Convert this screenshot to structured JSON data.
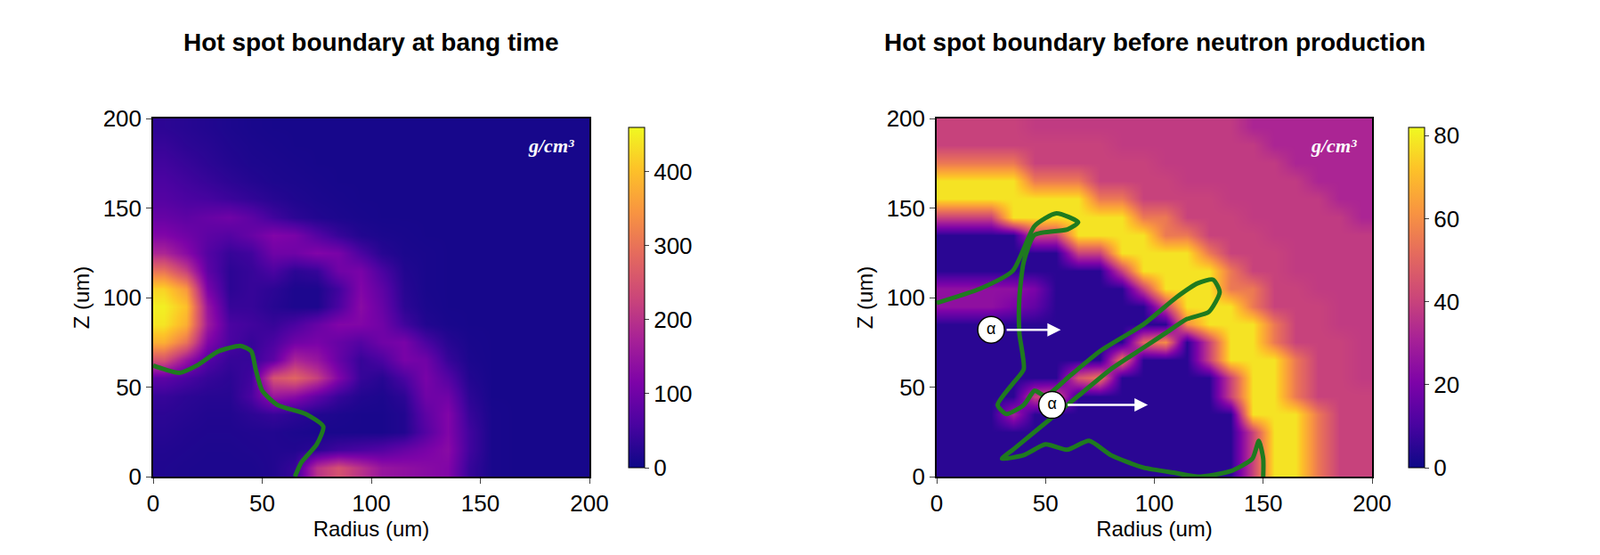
{
  "chart_data": [
    {
      "type": "heatmap",
      "title": "Hot spot boundary at bang time",
      "x_label": "Radius (um)",
      "y_label": "Z (um)",
      "units": "g/cm³",
      "xlim": [
        0,
        200
      ],
      "ylim": [
        0,
        200
      ],
      "xticks": [
        0,
        50,
        100,
        150,
        200
      ],
      "yticks": [
        0,
        50,
        100,
        150,
        200
      ],
      "x": [
        5,
        15,
        25,
        35,
        45,
        55,
        65,
        75,
        85,
        95,
        105,
        115,
        125,
        135,
        145,
        155,
        165,
        175,
        185,
        195
      ],
      "y": [
        5,
        15,
        25,
        35,
        45,
        55,
        65,
        75,
        85,
        95,
        105,
        115,
        125,
        135,
        145,
        155,
        165,
        175,
        185,
        195
      ],
      "cells": [
        [
          18,
          16,
          15,
          15,
          15,
          20,
          40,
          200,
          250,
          200,
          150,
          140,
          130,
          120,
          40,
          12,
          10,
          10,
          10,
          10
        ],
        [
          20,
          18,
          16,
          16,
          18,
          20,
          20,
          30,
          50,
          60,
          70,
          90,
          110,
          130,
          50,
          12,
          10,
          10,
          10,
          10
        ],
        [
          25,
          20,
          18,
          18,
          20,
          20,
          15,
          12,
          12,
          12,
          12,
          20,
          70,
          120,
          50,
          12,
          10,
          10,
          10,
          10
        ],
        [
          30,
          25,
          20,
          20,
          30,
          40,
          30,
          20,
          15,
          12,
          12,
          20,
          80,
          120,
          40,
          12,
          10,
          10,
          10,
          10
        ],
        [
          40,
          30,
          25,
          25,
          60,
          150,
          130,
          80,
          40,
          20,
          15,
          30,
          100,
          100,
          30,
          10,
          10,
          10,
          10,
          10
        ],
        [
          80,
          60,
          40,
          30,
          50,
          250,
          280,
          220,
          120,
          40,
          25,
          60,
          110,
          70,
          20,
          10,
          10,
          10,
          10,
          10
        ],
        [
          250,
          150,
          70,
          40,
          40,
          80,
          180,
          150,
          90,
          40,
          60,
          110,
          100,
          40,
          14,
          10,
          10,
          10,
          10,
          10
        ],
        [
          380,
          300,
          120,
          60,
          40,
          60,
          100,
          110,
          90,
          70,
          100,
          110,
          60,
          25,
          12,
          10,
          10,
          10,
          10,
          10
        ],
        [
          440,
          380,
          160,
          60,
          50,
          40,
          60,
          90,
          120,
          120,
          100,
          50,
          20,
          12,
          10,
          10,
          10,
          10,
          10,
          10
        ],
        [
          450,
          400,
          150,
          40,
          40,
          25,
          15,
          15,
          60,
          130,
          90,
          30,
          14,
          10,
          10,
          10,
          10,
          10,
          10,
          10
        ],
        [
          420,
          350,
          110,
          30,
          40,
          30,
          15,
          15,
          50,
          120,
          80,
          25,
          12,
          10,
          10,
          10,
          10,
          10,
          10,
          10
        ],
        [
          300,
          220,
          80,
          30,
          40,
          60,
          30,
          40,
          100,
          110,
          60,
          20,
          12,
          10,
          10,
          10,
          10,
          10,
          10,
          10
        ],
        [
          180,
          130,
          70,
          40,
          50,
          100,
          100,
          120,
          110,
          60,
          25,
          14,
          12,
          10,
          10,
          10,
          10,
          10,
          10,
          10
        ],
        [
          120,
          100,
          80,
          70,
          90,
          120,
          110,
          70,
          40,
          20,
          14,
          12,
          10,
          10,
          10,
          10,
          10,
          10,
          10,
          10
        ],
        [
          90,
          80,
          90,
          100,
          80,
          50,
          30,
          20,
          15,
          12,
          10,
          10,
          10,
          10,
          10,
          10,
          10,
          10,
          10,
          10
        ],
        [
          70,
          60,
          55,
          45,
          35,
          25,
          18,
          14,
          12,
          10,
          10,
          10,
          10,
          10,
          10,
          10,
          10,
          10,
          10,
          10
        ],
        [
          60,
          50,
          40,
          30,
          22,
          16,
          14,
          12,
          10,
          10,
          10,
          10,
          10,
          10,
          10,
          10,
          10,
          10,
          10,
          10
        ],
        [
          50,
          40,
          30,
          22,
          16,
          14,
          12,
          10,
          10,
          10,
          10,
          10,
          10,
          10,
          10,
          10,
          10,
          10,
          10,
          10
        ],
        [
          40,
          30,
          25,
          18,
          14,
          12,
          10,
          10,
          10,
          10,
          10,
          10,
          10,
          10,
          10,
          10,
          10,
          10,
          10,
          10
        ],
        [
          30,
          25,
          20,
          15,
          12,
          10,
          10,
          10,
          10,
          10,
          10,
          10,
          10,
          10,
          10,
          10,
          10,
          10,
          10,
          10
        ]
      ],
      "colorbar_range": [
        0,
        460
      ],
      "colorbar_ticks": [
        0,
        100,
        200,
        300,
        400
      ],
      "boundary": {
        "color": "#1f7a1f",
        "x": [
          0,
          5,
          12,
          20,
          30,
          40,
          45,
          47,
          50,
          57,
          70,
          78,
          75,
          68,
          65
        ],
        "y": [
          62,
          60,
          58,
          62,
          70,
          73,
          70,
          60,
          48,
          40,
          35,
          28,
          18,
          8,
          0
        ]
      },
      "annotations": []
    },
    {
      "type": "heatmap",
      "title": "Hot spot boundary before neutron production",
      "x_label": "Radius (um)",
      "y_label": "Z (um)",
      "units": "g/cm³",
      "xlim": [
        0,
        200
      ],
      "ylim": [
        0,
        200
      ],
      "xticks": [
        0,
        50,
        100,
        150,
        200
      ],
      "yticks": [
        0,
        50,
        100,
        150,
        200
      ],
      "x": [
        5,
        15,
        25,
        35,
        45,
        55,
        65,
        75,
        85,
        95,
        105,
        115,
        125,
        135,
        145,
        155,
        165,
        175,
        185,
        195
      ],
      "y": [
        5,
        15,
        25,
        35,
        45,
        55,
        65,
        75,
        85,
        95,
        105,
        115,
        125,
        135,
        145,
        155,
        165,
        175,
        185,
        195
      ],
      "cells": [
        [
          5,
          5,
          5,
          5,
          5,
          5,
          5,
          5,
          5,
          5,
          5,
          5,
          5,
          5,
          40,
          78,
          78,
          55,
          40,
          40
        ],
        [
          5,
          5,
          5,
          5,
          5,
          5,
          5,
          5,
          5,
          5,
          5,
          5,
          5,
          5,
          40,
          78,
          78,
          55,
          40,
          40
        ],
        [
          5,
          5,
          5,
          5,
          5,
          5,
          5,
          5,
          5,
          5,
          5,
          5,
          5,
          5,
          40,
          78,
          78,
          55,
          40,
          40
        ],
        [
          5,
          5,
          5,
          30,
          5,
          5,
          5,
          5,
          5,
          5,
          5,
          5,
          5,
          5,
          78,
          78,
          78,
          55,
          40,
          40
        ],
        [
          5,
          5,
          5,
          5,
          40,
          45,
          5,
          5,
          5,
          5,
          5,
          5,
          5,
          40,
          78,
          78,
          55,
          40,
          40,
          40
        ],
        [
          5,
          5,
          5,
          5,
          5,
          5,
          45,
          55,
          5,
          5,
          5,
          5,
          5,
          40,
          78,
          78,
          55,
          40,
          40,
          38
        ],
        [
          5,
          5,
          5,
          5,
          5,
          5,
          5,
          5,
          55,
          5,
          5,
          5,
          40,
          78,
          78,
          78,
          55,
          40,
          40,
          38
        ],
        [
          5,
          5,
          5,
          5,
          5,
          5,
          5,
          5,
          5,
          50,
          60,
          5,
          40,
          78,
          78,
          55,
          40,
          40,
          40,
          38
        ],
        [
          5,
          5,
          5,
          5,
          5,
          5,
          5,
          5,
          5,
          5,
          5,
          60,
          78,
          78,
          78,
          55,
          40,
          40,
          38,
          38
        ],
        [
          25,
          25,
          25,
          20,
          15,
          5,
          5,
          5,
          5,
          5,
          40,
          78,
          78,
          78,
          55,
          40,
          40,
          40,
          38,
          38
        ],
        [
          25,
          25,
          25,
          25,
          20,
          5,
          5,
          5,
          5,
          40,
          78,
          78,
          78,
          55,
          55,
          40,
          40,
          38,
          38,
          38
        ],
        [
          5,
          5,
          5,
          5,
          5,
          5,
          5,
          5,
          40,
          78,
          78,
          78,
          78,
          55,
          40,
          40,
          38,
          38,
          38,
          38
        ],
        [
          5,
          5,
          5,
          5,
          5,
          5,
          40,
          40,
          78,
          78,
          78,
          78,
          55,
          40,
          40,
          40,
          38,
          38,
          38,
          38
        ],
        [
          5,
          5,
          5,
          5,
          40,
          40,
          78,
          78,
          78,
          78,
          55,
          55,
          40,
          40,
          40,
          38,
          38,
          38,
          38,
          38
        ],
        [
          40,
          40,
          40,
          78,
          78,
          78,
          78,
          78,
          78,
          55,
          55,
          40,
          40,
          40,
          38,
          38,
          38,
          38,
          38,
          32
        ],
        [
          78,
          78,
          78,
          78,
          78,
          78,
          78,
          55,
          55,
          40,
          40,
          40,
          40,
          38,
          38,
          38,
          38,
          38,
          32,
          32
        ],
        [
          78,
          78,
          78,
          78,
          55,
          55,
          55,
          40,
          40,
          40,
          40,
          38,
          38,
          38,
          38,
          38,
          38,
          32,
          32,
          32
        ],
        [
          55,
          55,
          55,
          55,
          40,
          40,
          40,
          40,
          40,
          40,
          38,
          38,
          38,
          38,
          38,
          38,
          32,
          32,
          32,
          32
        ],
        [
          40,
          40,
          40,
          40,
          40,
          40,
          40,
          40,
          38,
          38,
          38,
          38,
          38,
          38,
          38,
          32,
          32,
          32,
          32,
          32
        ],
        [
          40,
          40,
          40,
          40,
          38,
          38,
          38,
          38,
          38,
          38,
          38,
          38,
          38,
          38,
          32,
          32,
          32,
          32,
          32,
          32
        ]
      ],
      "colorbar_range": [
        0,
        82
      ],
      "colorbar_ticks": [
        0,
        20,
        40,
        60,
        80
      ],
      "boundary": {
        "color": "#1f7a1f",
        "x": [
          0,
          20,
          35,
          45,
          55,
          65,
          60,
          45,
          40,
          38,
          38,
          40,
          35,
          28,
          32,
          40,
          45,
          50,
          60,
          75,
          95,
          110,
          120,
          127,
          130,
          125,
          115,
          105,
          95,
          80,
          65,
          55,
          45,
          35,
          30,
          40,
          50,
          60,
          70,
          80,
          95,
          110,
          120,
          135,
          145,
          148,
          150,
          150
        ],
        "y": [
          97,
          105,
          115,
          140,
          147,
          142,
          138,
          135,
          120,
          100,
          80,
          60,
          52,
          40,
          35,
          40,
          48,
          45,
          55,
          70,
          85,
          100,
          108,
          110,
          103,
          92,
          88,
          80,
          72,
          60,
          45,
          35,
          25,
          15,
          10,
          12,
          18,
          15,
          20,
          12,
          5,
          2,
          0,
          3,
          10,
          20,
          10,
          0
        ]
      },
      "annotations": [
        {
          "text": "α",
          "x": 57,
          "y": 82,
          "ax": 25,
          "ay": 82
        },
        {
          "text": "α",
          "x": 97,
          "y": 40,
          "ax": 53,
          "ay": 40
        }
      ]
    }
  ]
}
